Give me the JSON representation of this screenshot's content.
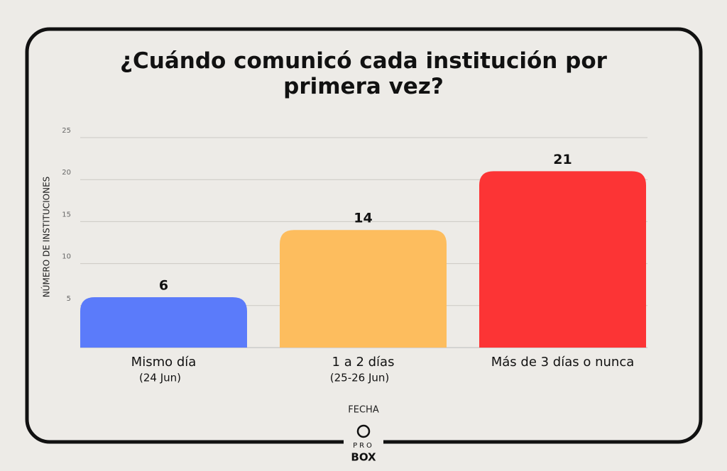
{
  "chart_data": {
    "type": "bar",
    "title": "¿Cuándo comunicó cada institución por primera vez?",
    "categories": [
      "Mismo día",
      "1 a 2 días",
      "Más de 3 días o nunca"
    ],
    "category_notes": [
      "(24 Jun)",
      "(25-26 Jun)",
      null
    ],
    "values": [
      6,
      14,
      21
    ],
    "colors": [
      "#5b7bfa",
      "#fdbd5e",
      "#fc3435"
    ],
    "ylim": [
      0,
      25
    ],
    "yticks": [
      5,
      10,
      15,
      20,
      25
    ],
    "grid": true,
    "y_label": "NÚMERO DE INSTITUCIONES",
    "x_label": "FECHA"
  },
  "logo": {
    "top": "PRO",
    "bottom": "BOX"
  }
}
